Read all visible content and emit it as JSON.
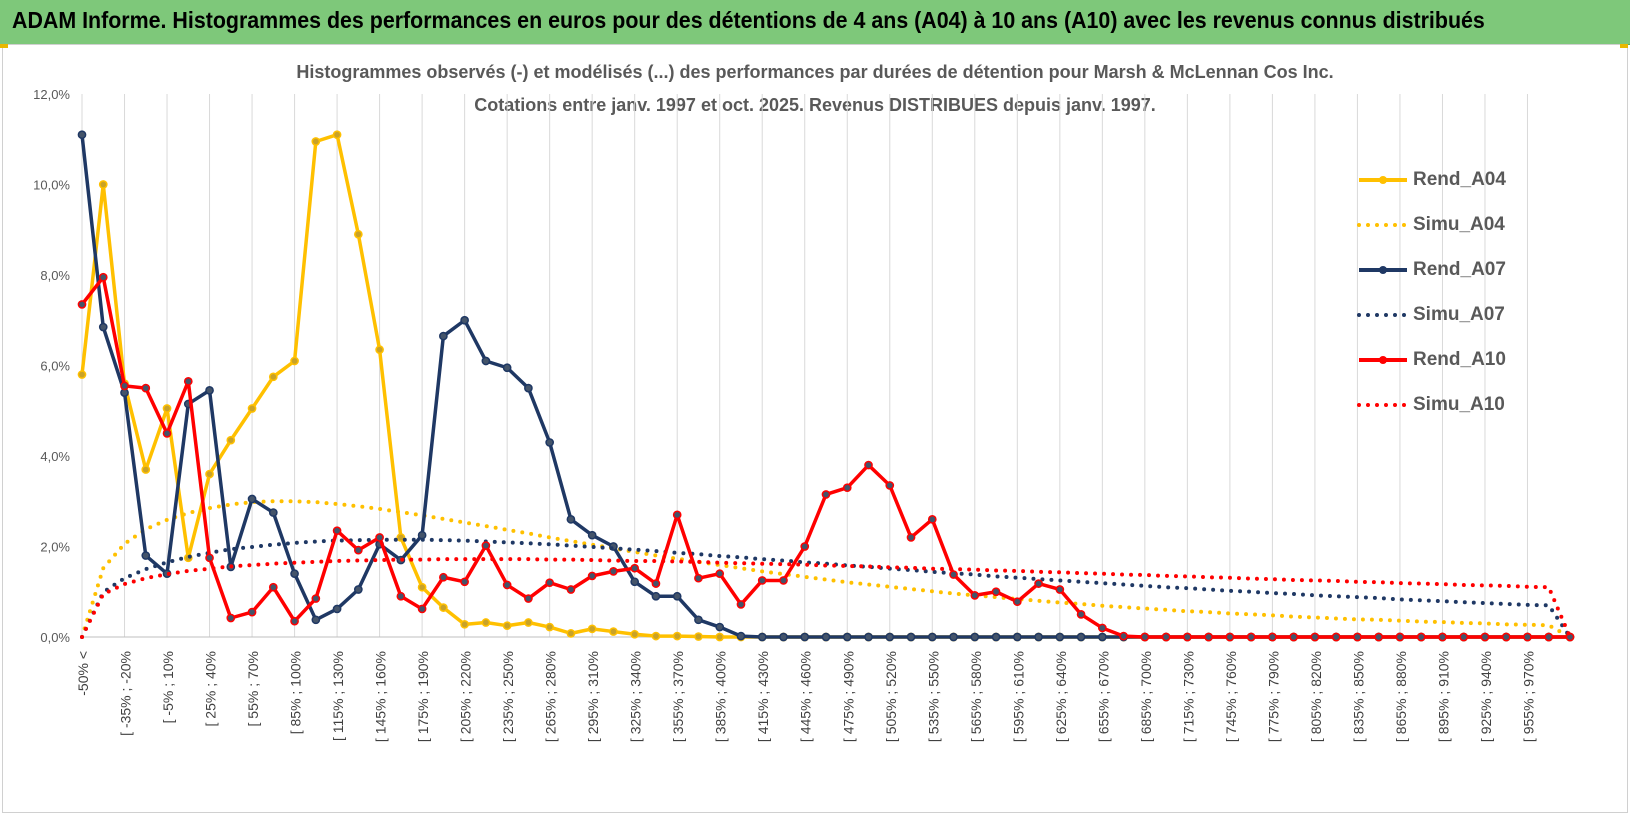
{
  "page": {
    "header_title": "ADAM Informe. Histogrammes des performances en euros pour des détentions de 4 ans (A04) à 10 ans (A10) avec les revenus connus distribués"
  },
  "chart_data": {
    "type": "line",
    "title": "Histogrammes observés (-) et modélisés (...) des performances par durées de détention pour Marsh & McLennan Cos Inc.",
    "subtitle": "Cotations entre janv. 1997 et oct. 2025.  Revenus DISTRIBUES depuis janv. 1997.",
    "xlabel": "",
    "ylabel": "",
    "ylim": [
      0,
      12
    ],
    "y_unit": "%",
    "y_ticks": [
      "0,0%",
      "2,0%",
      "4,0%",
      "6,0%",
      "8,0%",
      "10,0%",
      "12,0%"
    ],
    "grid": "vertical",
    "legend_position": "right",
    "x_tick_labels": [
      "-50% <",
      "[ -35% ; -20%",
      "[ -5% ; 10%",
      "[ 25% ; 40%",
      "[ 55% ; 70%",
      "[ 85% ; 100%",
      "[ 115% ; 130%",
      "[ 145% ; 160%",
      "[ 175% ; 190%",
      "[ 205% ; 220%",
      "[ 235% ; 250%",
      "[ 265% ; 280%",
      "[ 295% ; 310%",
      "[ 325% ; 340%",
      "[ 355% ; 370%",
      "[ 385% ; 400%",
      "[ 415% ; 430%",
      "[ 445% ; 460%",
      "[ 475% ; 490%",
      "[ 505% ; 520%",
      "[ 535% ; 550%",
      "[ 565% ; 580%",
      "[ 595% ; 610%",
      "[ 625% ; 640%",
      "[ 655% ; 670%",
      "[ 685% ; 700%",
      "[ 715% ; 730%",
      "[ 745% ; 760%",
      "[ 775% ; 790%",
      "[ 805% ; 820%",
      "[ 835% ; 850%",
      "[ 865% ; 880%",
      "[ 895% ; 910%",
      "[ 925% ; 940%",
      "[ 955% ; 970%"
    ],
    "series": [
      {
        "name": "Rend_A04",
        "color": "#ffc000",
        "style": "solid",
        "values": [
          5.8,
          10.0,
          5.6,
          3.7,
          5.05,
          1.75,
          3.6,
          4.35,
          5.05,
          5.75,
          6.1,
          10.95,
          11.1,
          8.9,
          6.35,
          2.2,
          1.1,
          0.65,
          0.28,
          0.32,
          0.25,
          0.32,
          0.22,
          0.08,
          0.18,
          0.12,
          0.06,
          0.02,
          0.02,
          0.01,
          0.0,
          0.0,
          0.0,
          0.0,
          0.0,
          0.0,
          0.0,
          0.0,
          0.0,
          0.0,
          0.0,
          0.0,
          0.0,
          0.0,
          0.0,
          0.0,
          0.0,
          0.0,
          0.0,
          0.0,
          0.0,
          0.0,
          0.0,
          0.0,
          0.0,
          0.0,
          0.0,
          0.0,
          0.0,
          0.0,
          0.0,
          0.0,
          0.0,
          0.0,
          0.0,
          0.0,
          0.0,
          0.0,
          0.0,
          0.0,
          0.0
        ]
      },
      {
        "name": "Simu_A04",
        "color": "#ffc000",
        "style": "dotted",
        "values": [
          0.0,
          1.52,
          2.06,
          2.38,
          2.59,
          2.74,
          2.85,
          2.93,
          2.98,
          3.0,
          3.0,
          2.98,
          2.94,
          2.89,
          2.83,
          2.76,
          2.69,
          2.61,
          2.53,
          2.45,
          2.37,
          2.29,
          2.2,
          2.12,
          2.04,
          1.96,
          1.88,
          1.8,
          1.73,
          1.66,
          1.59,
          1.52,
          1.45,
          1.39,
          1.33,
          1.27,
          1.21,
          1.16,
          1.11,
          1.06,
          1.01,
          0.96,
          0.92,
          0.88,
          0.84,
          0.8,
          0.76,
          0.73,
          0.69,
          0.66,
          0.63,
          0.6,
          0.57,
          0.55,
          0.52,
          0.5,
          0.48,
          0.45,
          0.43,
          0.41,
          0.39,
          0.38,
          0.36,
          0.34,
          0.33,
          0.31,
          0.3,
          0.28,
          0.27,
          0.26,
          0.0
        ]
      },
      {
        "name": "Rend_A07",
        "color": "#1f3864",
        "style": "solid",
        "values": [
          11.1,
          6.85,
          5.4,
          1.8,
          1.4,
          5.15,
          5.45,
          1.55,
          3.05,
          2.75,
          1.4,
          0.38,
          0.62,
          1.05,
          2.05,
          1.7,
          2.25,
          6.65,
          7.0,
          6.1,
          5.95,
          5.5,
          4.3,
          2.6,
          2.25,
          2.0,
          1.22,
          0.9,
          0.9,
          0.38,
          0.22,
          0.02,
          0.0,
          0.0,
          0.0,
          0.0,
          0.0,
          0.0,
          0.0,
          0.0,
          0.0,
          0.0,
          0.0,
          0.0,
          0.0,
          0.0,
          0.0,
          0.0,
          0.0,
          0.0,
          0.0,
          0.0,
          0.0,
          0.0,
          0.0,
          0.0,
          0.0,
          0.0,
          0.0,
          0.0,
          0.0,
          0.0,
          0.0,
          0.0,
          0.0,
          0.0,
          0.0,
          0.0,
          0.0,
          0.0,
          0.0
        ]
      },
      {
        "name": "Simu_A07",
        "color": "#1f3864",
        "style": "dotted",
        "values": [
          0.0,
          0.99,
          1.3,
          1.5,
          1.65,
          1.77,
          1.86,
          1.94,
          1.99,
          2.04,
          2.08,
          2.11,
          2.13,
          2.14,
          2.15,
          2.15,
          2.15,
          2.14,
          2.13,
          2.11,
          2.09,
          2.07,
          2.05,
          2.02,
          1.99,
          1.96,
          1.93,
          1.9,
          1.86,
          1.83,
          1.79,
          1.76,
          1.72,
          1.69,
          1.65,
          1.62,
          1.58,
          1.55,
          1.51,
          1.48,
          1.44,
          1.41,
          1.38,
          1.34,
          1.31,
          1.28,
          1.25,
          1.22,
          1.19,
          1.16,
          1.13,
          1.1,
          1.08,
          1.05,
          1.02,
          1.0,
          0.97,
          0.95,
          0.92,
          0.9,
          0.88,
          0.86,
          0.83,
          0.81,
          0.79,
          0.77,
          0.75,
          0.73,
          0.71,
          0.7,
          0.0
        ]
      },
      {
        "name": "Rend_A10",
        "color": "#ff0000",
        "style": "solid",
        "values": [
          7.35,
          7.95,
          5.55,
          5.5,
          4.5,
          5.65,
          1.75,
          0.42,
          0.55,
          1.1,
          0.35,
          0.85,
          2.35,
          1.92,
          2.2,
          0.9,
          0.62,
          1.32,
          1.22,
          2.02,
          1.15,
          0.85,
          1.2,
          1.05,
          1.35,
          1.45,
          1.52,
          1.18,
          2.7,
          1.3,
          1.4,
          0.72,
          1.25,
          1.25,
          2.0,
          3.15,
          3.3,
          3.8,
          3.35,
          2.2,
          2.6,
          1.38,
          0.92,
          1.0,
          0.78,
          1.18,
          1.05,
          0.5,
          0.2,
          0.02,
          0.0,
          0.0,
          0.0,
          0.0,
          0.0,
          0.0,
          0.0,
          0.0,
          0.0,
          0.0,
          0.0,
          0.0,
          0.0,
          0.0,
          0.0,
          0.0,
          0.0,
          0.0,
          0.0,
          0.0,
          0.0
        ]
      },
      {
        "name": "Simu_A10",
        "color": "#ff0000",
        "style": "dotted",
        "values": [
          0.0,
          0.95,
          1.17,
          1.3,
          1.39,
          1.46,
          1.51,
          1.56,
          1.59,
          1.62,
          1.64,
          1.66,
          1.68,
          1.69,
          1.7,
          1.71,
          1.71,
          1.72,
          1.72,
          1.72,
          1.72,
          1.72,
          1.71,
          1.71,
          1.7,
          1.69,
          1.68,
          1.68,
          1.67,
          1.66,
          1.64,
          1.63,
          1.62,
          1.61,
          1.6,
          1.58,
          1.57,
          1.56,
          1.54,
          1.53,
          1.51,
          1.5,
          1.49,
          1.47,
          1.46,
          1.44,
          1.43,
          1.41,
          1.4,
          1.38,
          1.37,
          1.35,
          1.34,
          1.32,
          1.31,
          1.29,
          1.28,
          1.26,
          1.25,
          1.24,
          1.22,
          1.21,
          1.19,
          1.18,
          1.17,
          1.15,
          1.14,
          1.13,
          1.11,
          1.1,
          0.0
        ]
      }
    ]
  }
}
